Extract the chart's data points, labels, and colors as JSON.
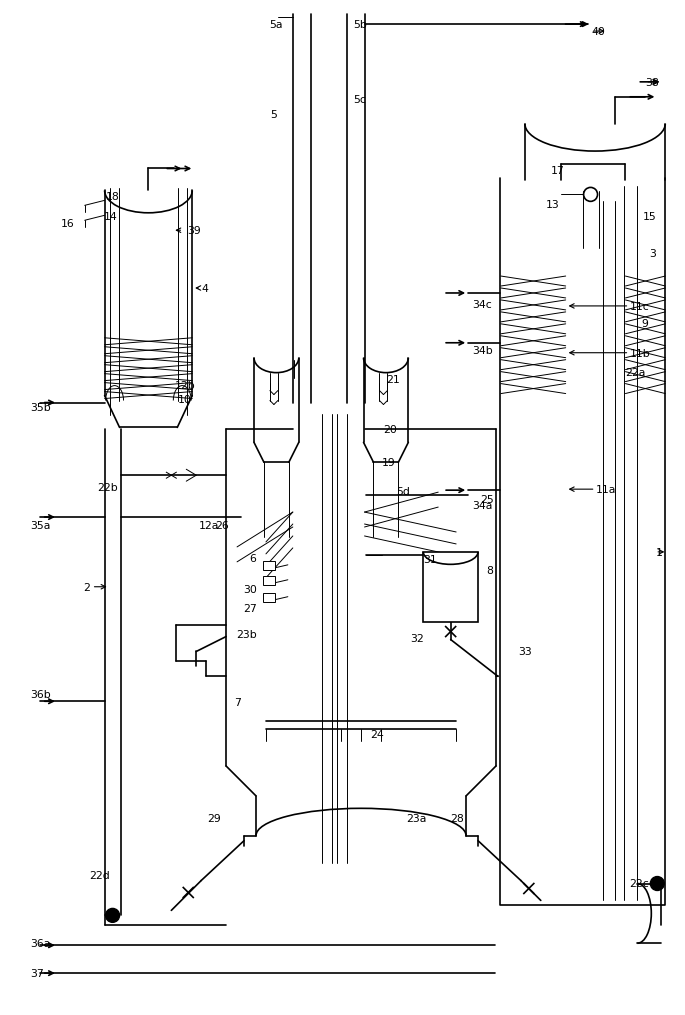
{
  "bg_color": "#ffffff",
  "lc": "#000000",
  "lw": 1.2,
  "tlw": 0.7,
  "fig_w": 6.68,
  "fig_h": 10.0
}
